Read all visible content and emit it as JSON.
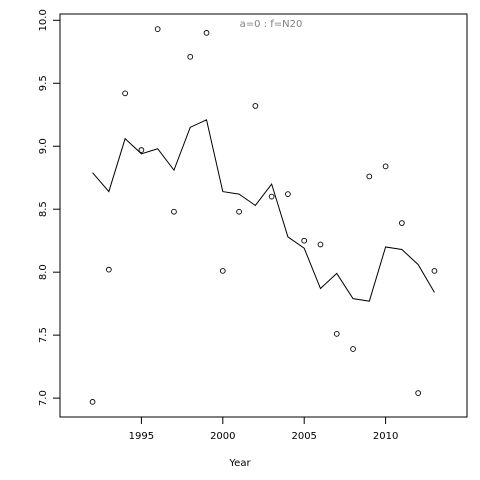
{
  "chart_data": {
    "type": "scatter",
    "annotation": "a=0  :  f=N20",
    "x_label": "Year",
    "x": [
      1992,
      1993,
      1994,
      1995,
      1996,
      1997,
      1998,
      1999,
      2000,
      2001,
      2002,
      2003,
      2004,
      2005,
      2006,
      2007,
      2008,
      2009,
      2010,
      2011,
      2012,
      2013
    ],
    "series": [
      {
        "kind": "points",
        "color": "#000000",
        "values": [
          6.97,
          8.02,
          9.42,
          8.97,
          9.93,
          8.48,
          9.71,
          9.9,
          8.01,
          8.48,
          9.32,
          8.6,
          8.62,
          8.25,
          8.22,
          7.51,
          7.39,
          8.76,
          8.84,
          8.39,
          7.04,
          8.01
        ]
      },
      {
        "kind": "line",
        "color": "#000000",
        "values": [
          8.79,
          8.64,
          9.06,
          8.94,
          8.98,
          8.81,
          9.15,
          9.21,
          8.64,
          8.62,
          8.53,
          8.7,
          8.28,
          8.19,
          7.87,
          7.99,
          7.79,
          7.77,
          8.2,
          8.18,
          8.06,
          7.84
        ]
      }
    ],
    "xlim": [
      1990,
      2015
    ],
    "ylim": [
      6.85,
      10.05
    ],
    "xticks": [
      1995,
      2000,
      2005,
      2010
    ],
    "yticks": [
      {
        "value": 7,
        "label": "7.0"
      },
      {
        "value": 7.5,
        "label": "7.5"
      },
      {
        "value": 8,
        "label": "8.0"
      },
      {
        "value": 8.5,
        "label": "8.5"
      },
      {
        "value": 9,
        "label": "9.0"
      },
      {
        "value": 9.5,
        "label": "9.5"
      },
      {
        "value": 10,
        "label": "10.0"
      }
    ]
  }
}
